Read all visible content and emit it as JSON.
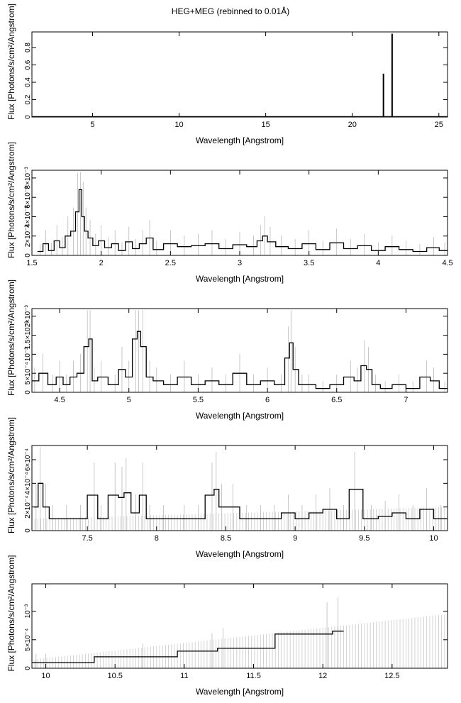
{
  "figure": {
    "title": "HEG+MEG (rebinned to 0.01Å)"
  },
  "chart_data": [
    {
      "type": "line",
      "xlabel": "Wavelength [Angstrom]",
      "ylabel": "Flux [Photons/s/cm²/Angstrom]",
      "xlim": [
        1.5,
        25.5
      ],
      "ylim": [
        0,
        0.98
      ],
      "xticks": [
        5,
        10,
        15,
        20,
        25
      ],
      "yticks": [
        0,
        0.2,
        0.4,
        0.6,
        0.8
      ],
      "ytick_labels": [
        "0",
        "0.2",
        "0.4",
        "0.6",
        "0.8"
      ],
      "baseline": 0.002,
      "lines": [
        {
          "x": 21.8,
          "y": 0.5
        },
        {
          "x": 22.3,
          "y": 0.96
        }
      ]
    },
    {
      "type": "line",
      "xlabel": "Wavelength [Angstrom]",
      "ylabel": "Flux [Photons/s/cm²/Angstrom]",
      "xlim": [
        1.5,
        4.5
      ],
      "ylim": [
        0,
        0.0088
      ],
      "xticks": [
        1.5,
        2,
        2.5,
        3,
        3.5,
        4,
        4.5
      ],
      "yticks": [
        0,
        0.002,
        0.004,
        0.006,
        0.008
      ],
      "ytick_labels": [
        "0",
        "2×10⁻³",
        "4×10⁻³",
        "6×10⁻³",
        "8×10⁻³"
      ],
      "x": [
        1.56,
        1.6,
        1.64,
        1.68,
        1.72,
        1.76,
        1.8,
        1.83,
        1.85,
        1.87,
        1.89,
        1.92,
        1.96,
        2.0,
        2.05,
        2.1,
        2.15,
        2.2,
        2.25,
        2.3,
        2.35,
        2.4,
        2.5,
        2.6,
        2.7,
        2.8,
        2.9,
        3.0,
        3.1,
        3.15,
        3.18,
        3.22,
        3.3,
        3.4,
        3.5,
        3.6,
        3.7,
        3.8,
        3.9,
        4.0,
        4.1,
        4.2,
        4.3,
        4.4,
        4.48
      ],
      "y": [
        0.0004,
        0.0012,
        0.0005,
        0.0015,
        0.0008,
        0.002,
        0.0025,
        0.0045,
        0.0068,
        0.004,
        0.0025,
        0.0018,
        0.001,
        0.0015,
        0.0008,
        0.0012,
        0.0005,
        0.0014,
        0.0007,
        0.0012,
        0.0018,
        0.0006,
        0.0012,
        0.0009,
        0.001,
        0.0012,
        0.0007,
        0.0011,
        0.0009,
        0.0015,
        0.002,
        0.0014,
        0.0009,
        0.0007,
        0.0012,
        0.0006,
        0.0013,
        0.0007,
        0.001,
        0.0005,
        0.0009,
        0.0006,
        0.0004,
        0.0008,
        0.0005
      ]
    },
    {
      "type": "line",
      "xlabel": "Wavelength [Angstrom]",
      "ylabel": "Flux [Photons/s/cm²/Angstrom]",
      "xlim": [
        4.3,
        7.3
      ],
      "ylim": [
        0,
        0.0022
      ],
      "xticks": [
        4.5,
        5,
        5.5,
        6,
        6.5,
        7
      ],
      "yticks": [
        0,
        0.0005,
        0.001,
        0.0015,
        0.002
      ],
      "ytick_labels": [
        "0",
        "5×10⁻⁴",
        "10⁻³",
        "1.5×10⁻³",
        "2×10⁻³"
      ],
      "x": [
        4.32,
        4.38,
        4.45,
        4.5,
        4.55,
        4.6,
        4.65,
        4.7,
        4.72,
        4.75,
        4.8,
        4.9,
        4.95,
        5.0,
        5.05,
        5.07,
        5.1,
        5.15,
        5.2,
        5.3,
        5.4,
        5.5,
        5.6,
        5.7,
        5.8,
        5.9,
        6.0,
        6.1,
        6.15,
        6.17,
        6.2,
        6.25,
        6.3,
        6.4,
        6.5,
        6.6,
        6.65,
        6.7,
        6.73,
        6.78,
        6.85,
        6.95,
        7.05,
        7.15,
        7.2,
        7.28
      ],
      "y": [
        0.0003,
        0.0005,
        0.0002,
        0.0004,
        0.0002,
        0.0004,
        0.0005,
        0.0012,
        0.0014,
        0.0003,
        0.0004,
        0.0002,
        0.0006,
        0.0004,
        0.0014,
        0.0016,
        0.0012,
        0.0004,
        0.0003,
        0.0002,
        0.0004,
        0.0002,
        0.0003,
        0.0002,
        0.0005,
        0.0002,
        0.0003,
        0.0002,
        0.0009,
        0.0013,
        0.0006,
        0.0002,
        0.0002,
        0.0001,
        0.0002,
        0.0004,
        0.0003,
        0.0007,
        0.0006,
        0.0002,
        0.0001,
        0.0002,
        0.0001,
        0.0004,
        0.0003,
        0.0001
      ]
    },
    {
      "type": "line",
      "xlabel": "Wavelength [Angstrom]",
      "ylabel": "Flux [Photons/s/cm²/Angstrom]",
      "xlim": [
        7.1,
        10.1
      ],
      "ylim": [
        0,
        0.00072
      ],
      "xticks": [
        7.5,
        8,
        8.5,
        9,
        9.5,
        10
      ],
      "yticks": [
        0,
        0.0002,
        0.0004,
        0.0006
      ],
      "ytick_labels": [
        "0",
        "2×10⁻⁴",
        "4×10⁻⁴",
        "6×10⁻⁴"
      ],
      "x": [
        7.13,
        7.16,
        7.2,
        7.25,
        7.35,
        7.45,
        7.55,
        7.6,
        7.7,
        7.75,
        7.78,
        7.85,
        7.9,
        7.95,
        8.05,
        8.2,
        8.3,
        8.4,
        8.43,
        8.47,
        8.55,
        8.65,
        8.75,
        8.85,
        8.95,
        9.05,
        9.15,
        9.25,
        9.35,
        9.43,
        9.55,
        9.65,
        9.75,
        9.85,
        9.95,
        10.05
      ],
      "y": [
        0.0002,
        0.0004,
        0.0002,
        0.0001,
        0.0001,
        0.0001,
        0.0003,
        0.0001,
        0.0003,
        0.00028,
        0.00032,
        0.00015,
        0.0003,
        0.0001,
        0.0001,
        0.0001,
        0.0001,
        0.0003,
        0.00035,
        0.0002,
        0.0002,
        0.0001,
        0.0001,
        0.0001,
        0.00015,
        0.0001,
        0.00015,
        0.00018,
        0.0001,
        0.00035,
        0.0001,
        0.00012,
        0.00015,
        0.0001,
        0.00018,
        0.0001
      ],
      "upper_limit": [
        0.0001,
        0.0002
      ]
    },
    {
      "type": "line",
      "xlabel": "Wavelength [Angstrom]",
      "ylabel": "Flux [Photons/s/cm²/Angstrom]",
      "xlim": [
        9.9,
        12.9
      ],
      "ylim": [
        0,
        0.00148
      ],
      "xticks": [
        10,
        10.5,
        11,
        11.5,
        12,
        12.5
      ],
      "yticks": [
        0,
        0.0005,
        0.001
      ],
      "ytick_labels": [
        "0",
        "5×10⁻⁴",
        "10⁻³"
      ],
      "x": [
        9.93,
        10.0,
        10.7,
        11.2,
        11.28,
        12.03,
        12.11
      ],
      "y": [
        0.0001,
        0.0001,
        0.0002,
        0.0003,
        0.00035,
        0.0006,
        0.00065
      ],
      "upper_limit": [
        0.00015,
        0.00095
      ]
    }
  ]
}
